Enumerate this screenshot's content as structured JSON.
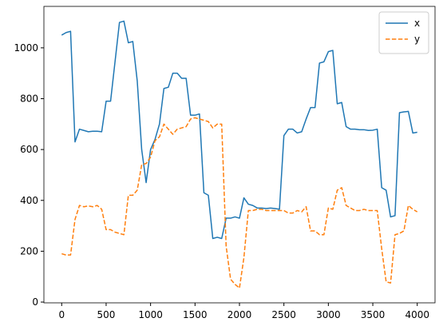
{
  "chart_data": {
    "type": "line",
    "x": [
      0,
      50,
      100,
      150,
      200,
      250,
      300,
      350,
      400,
      450,
      500,
      550,
      600,
      650,
      700,
      750,
      800,
      850,
      900,
      950,
      1000,
      1050,
      1100,
      1150,
      1200,
      1250,
      1300,
      1350,
      1400,
      1450,
      1500,
      1550,
      1600,
      1650,
      1700,
      1750,
      1800,
      1850,
      1900,
      1950,
      2000,
      2050,
      2100,
      2150,
      2200,
      2250,
      2300,
      2350,
      2400,
      2450,
      2500,
      2550,
      2600,
      2650,
      2700,
      2750,
      2800,
      2850,
      2900,
      2950,
      3000,
      3050,
      3100,
      3150,
      3200,
      3250,
      3300,
      3350,
      3400,
      3450,
      3500,
      3550,
      3600,
      3650,
      3700,
      3750,
      3800,
      3850,
      3900,
      3950,
      4000
    ],
    "series": [
      {
        "name": "x",
        "color": "#1f77b4",
        "linestyle": "solid",
        "values": [
          1050,
          1060,
          1065,
          630,
          680,
          675,
          670,
          672,
          672,
          670,
          790,
          790,
          945,
          1100,
          1105,
          1020,
          1025,
          870,
          600,
          470,
          600,
          640,
          700,
          840,
          845,
          900,
          900,
          880,
          880,
          735,
          735,
          740,
          430,
          420,
          250,
          255,
          250,
          330,
          330,
          335,
          330,
          410,
          385,
          380,
          370,
          370,
          368,
          370,
          368,
          365,
          655,
          680,
          680,
          665,
          670,
          720,
          765,
          765,
          940,
          945,
          985,
          990,
          780,
          785,
          690,
          680,
          680,
          678,
          678,
          675,
          676,
          680,
          450,
          440,
          335,
          340,
          745,
          748,
          750,
          665,
          668
        ]
      },
      {
        "name": "y",
        "color": "#ff7f0e",
        "linestyle": "dashed",
        "values": [
          190,
          185,
          185,
          325,
          380,
          375,
          378,
          375,
          380,
          365,
          285,
          285,
          275,
          270,
          265,
          420,
          420,
          440,
          540,
          545,
          570,
          635,
          650,
          700,
          680,
          660,
          680,
          685,
          690,
          720,
          725,
          720,
          715,
          710,
          685,
          700,
          700,
          220,
          90,
          70,
          55,
          175,
          360,
          360,
          365,
          365,
          360,
          360,
          360,
          360,
          360,
          350,
          350,
          360,
          355,
          375,
          280,
          280,
          265,
          265,
          370,
          365,
          440,
          450,
          380,
          370,
          360,
          360,
          365,
          360,
          360,
          360,
          210,
          80,
          75,
          265,
          270,
          280,
          380,
          365,
          355
        ]
      }
    ],
    "xlim": [
      -200,
      4200
    ],
    "xticks": [
      0,
      500,
      1000,
      1500,
      2000,
      2500,
      3000,
      3500,
      4000
    ],
    "ylim": [
      -3,
      1163
    ],
    "yticks": [
      0,
      200,
      400,
      600,
      800,
      1000
    ],
    "grid": false,
    "legend": "upper right"
  }
}
